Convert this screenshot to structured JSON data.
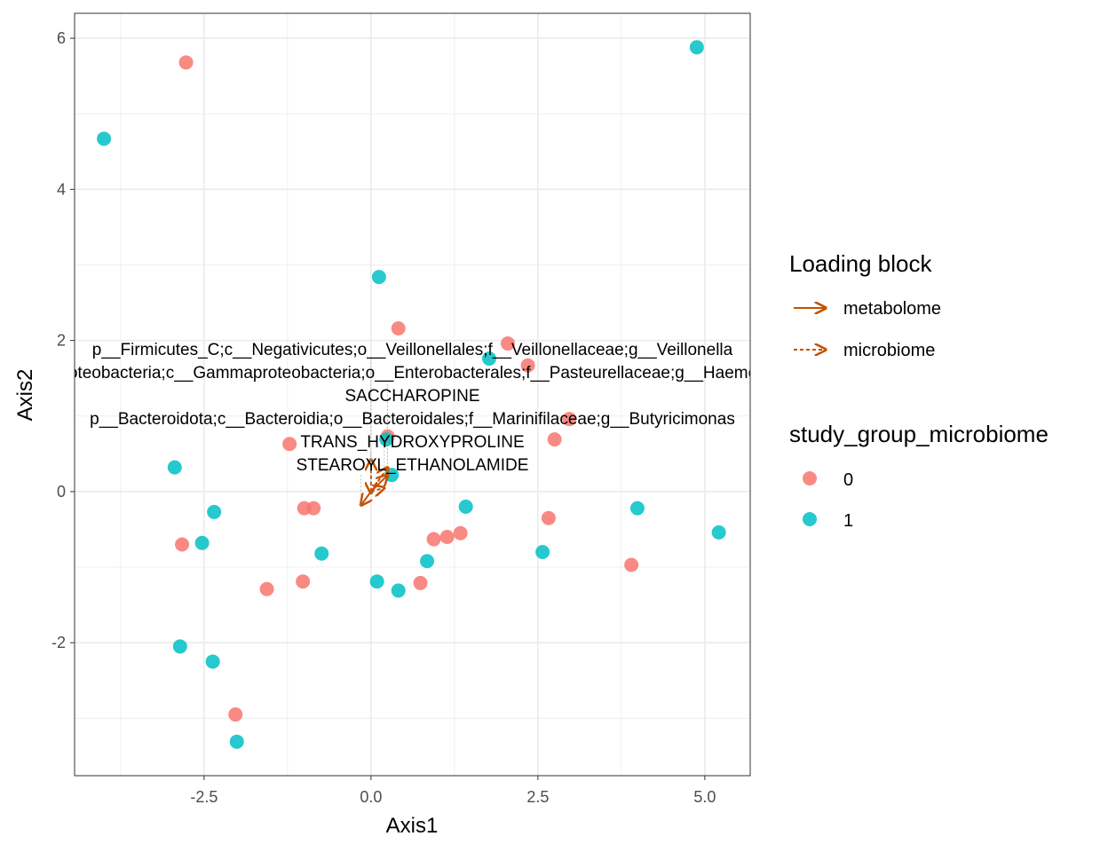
{
  "chart_data": {
    "type": "scatter",
    "xlabel": "Axis1",
    "ylabel": "Axis2",
    "xlim": [
      -4.44,
      5.68
    ],
    "ylim": [
      -3.76,
      6.33
    ],
    "x_ticks": [
      -2.5,
      0.0,
      2.5,
      5.0
    ],
    "x_tick_labels": [
      "-2.5",
      "0.0",
      "2.5",
      "5.0"
    ],
    "y_ticks": [
      -2,
      0,
      2,
      4,
      6
    ],
    "y_tick_labels": [
      "-2",
      "0",
      "2",
      "4",
      "6"
    ],
    "grid": true,
    "colors": {
      "0": "#F8766D",
      "1": "#00BFC4",
      "arrow": "#C45100"
    },
    "series": [
      {
        "name": "0",
        "points": [
          [
            -2.77,
            5.68
          ],
          [
            0.41,
            2.16
          ],
          [
            2.05,
            1.96
          ],
          [
            2.35,
            1.67
          ],
          [
            2.97,
            0.96
          ],
          [
            2.75,
            0.69
          ],
          [
            -1.22,
            0.63
          ],
          [
            0.25,
            0.73
          ],
          [
            -1.0,
            -0.22
          ],
          [
            -0.86,
            -0.22
          ],
          [
            -2.83,
            -0.7
          ],
          [
            2.66,
            -0.35
          ],
          [
            0.94,
            -0.63
          ],
          [
            1.14,
            -0.6
          ],
          [
            1.34,
            -0.55
          ],
          [
            -1.56,
            -1.29
          ],
          [
            -1.02,
            -1.19
          ],
          [
            0.74,
            -1.21
          ],
          [
            3.9,
            -0.97
          ],
          [
            -2.03,
            -2.95
          ]
        ]
      },
      {
        "name": "1",
        "points": [
          [
            -4.0,
            4.67
          ],
          [
            4.88,
            5.88
          ],
          [
            0.12,
            2.84
          ],
          [
            1.77,
            1.76
          ],
          [
            0.23,
            0.69
          ],
          [
            -2.94,
            0.32
          ],
          [
            0.31,
            0.22
          ],
          [
            -2.35,
            -0.27
          ],
          [
            -2.53,
            -0.68
          ],
          [
            -0.74,
            -0.82
          ],
          [
            1.42,
            -0.2
          ],
          [
            3.99,
            -0.22
          ],
          [
            5.21,
            -0.54
          ],
          [
            2.57,
            -0.8
          ],
          [
            0.84,
            -0.92
          ],
          [
            0.09,
            -1.19
          ],
          [
            0.41,
            -1.31
          ],
          [
            -2.86,
            -2.05
          ],
          [
            -2.37,
            -2.25
          ],
          [
            -2.01,
            -3.31
          ]
        ]
      }
    ],
    "loadings": [
      {
        "block": "microbiome",
        "x": 0.0,
        "y": 0.42,
        "label": "p__Firmicutes_C;c__Negativicutes;o__Veillonellales;f__Veillonellaceae;g__Veillonella"
      },
      {
        "block": "microbiome",
        "x": 0.25,
        "y": 0.32,
        "label": "p__Proteobacteria;c__Gammaproteobacteria;o__Enterobacterales;f__Pasteurellaceae;g__Haemophilus"
      },
      {
        "block": "metabolome",
        "x": 0.25,
        "y": 0.22,
        "label": "SACCHAROPINE"
      },
      {
        "block": "microbiome",
        "x": 0.2,
        "y": 0.05,
        "label": "p__Bacteroidota;c__Bacteroidia;o__Bacteroidales;f__Marinifilaceae;g__Butyricimonas"
      },
      {
        "block": "metabolome",
        "x": 0.0,
        "y": -0.02,
        "label": "TRANS_HYDROXYPROLINE"
      },
      {
        "block": "metabolome",
        "x": -0.15,
        "y": -0.18,
        "label": "STEAROYL_ETHANOLAMIDE"
      }
    ],
    "legend": {
      "placement": "right",
      "loading_title": "Loading block",
      "loading_items": [
        "metabolome",
        "microbiome"
      ],
      "group_title": "study_group_microbiome",
      "group_items": [
        "0",
        "1"
      ]
    }
  }
}
